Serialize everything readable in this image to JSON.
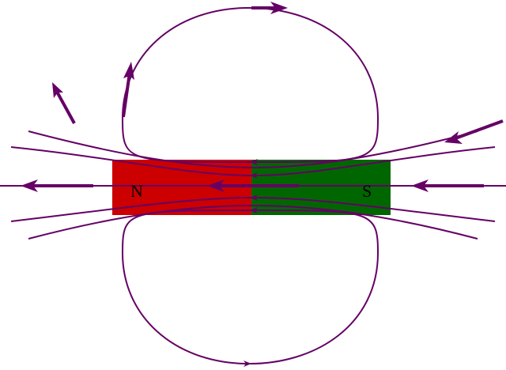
{
  "colors": {
    "background": "#ffffff",
    "field_line": "#650065",
    "north_pole_fill": "#cc0000",
    "south_pole_fill": "#006600"
  },
  "magnet": {
    "north_label": "N",
    "south_label": "S"
  },
  "icons": {
    "field_direction_arrow": "arrow-icon"
  }
}
